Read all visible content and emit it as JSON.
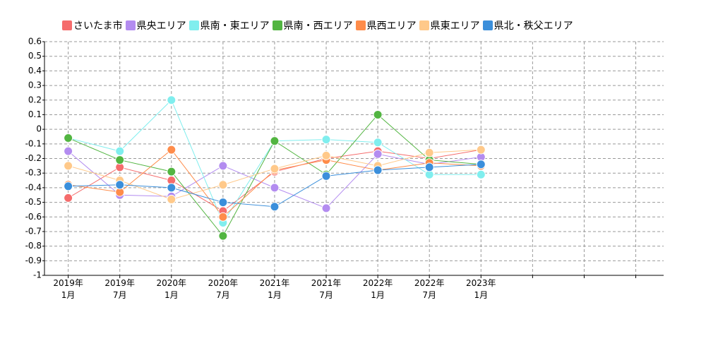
{
  "chart_data": {
    "type": "line",
    "categories": [
      "2019年\n1月",
      "2019年\n7月",
      "2020年\n1月",
      "2020年\n7月",
      "2021年\n1月",
      "2021年\n7月",
      "2022年\n1月",
      "2022年\n7月",
      "2023年\n1月",
      null,
      null,
      null
    ],
    "series": [
      {
        "name": "さいたま市",
        "color": "#f56c6c",
        "values": [
          -0.47,
          -0.26,
          -0.35,
          -0.56,
          -0.29,
          -0.2,
          -0.15,
          -0.2,
          -0.14,
          null,
          null,
          null
        ]
      },
      {
        "name": "県央エリア",
        "color": "#b38cf0",
        "values": [
          -0.15,
          -0.45,
          -0.46,
          -0.25,
          -0.4,
          -0.54,
          -0.17,
          -0.24,
          -0.19,
          null,
          null,
          null
        ]
      },
      {
        "name": "県南・東エリア",
        "color": "#80eeee",
        "values": [
          -0.06,
          -0.15,
          0.2,
          -0.64,
          -0.08,
          -0.07,
          -0.09,
          -0.31,
          -0.31,
          null,
          null,
          null
        ]
      },
      {
        "name": "県南・西エリア",
        "color": "#52b541",
        "values": [
          -0.06,
          -0.21,
          -0.29,
          -0.73,
          -0.08,
          -0.31,
          0.1,
          -0.21,
          -0.24,
          null,
          null,
          null
        ]
      },
      {
        "name": "県西エリア",
        "color": "#ff8c4a",
        "values": [
          -0.38,
          -0.43,
          -0.14,
          -0.6,
          -0.28,
          -0.21,
          -0.28,
          -0.23,
          -0.25,
          null,
          null,
          null
        ]
      },
      {
        "name": "県東エリア",
        "color": "#ffc98a",
        "values": [
          -0.25,
          -0.35,
          -0.48,
          -0.38,
          -0.27,
          -0.18,
          -0.25,
          -0.16,
          -0.14,
          null,
          null,
          null
        ]
      },
      {
        "name": "県北・秩父エリア",
        "color": "#3b8fdb",
        "values": [
          -0.39,
          -0.38,
          -0.4,
          -0.5,
          -0.53,
          -0.32,
          -0.28,
          -0.26,
          -0.24,
          null,
          null,
          null
        ]
      }
    ],
    "ylim": [
      -1,
      0.6
    ],
    "yticks": [
      -1,
      -0.9,
      -0.8,
      -0.7,
      -0.6,
      -0.5,
      -0.4,
      -0.3,
      -0.2,
      -0.1,
      0,
      0.1,
      0.2,
      0.3,
      0.4,
      0.5,
      0.6
    ],
    "grid": true,
    "legend": "top"
  }
}
